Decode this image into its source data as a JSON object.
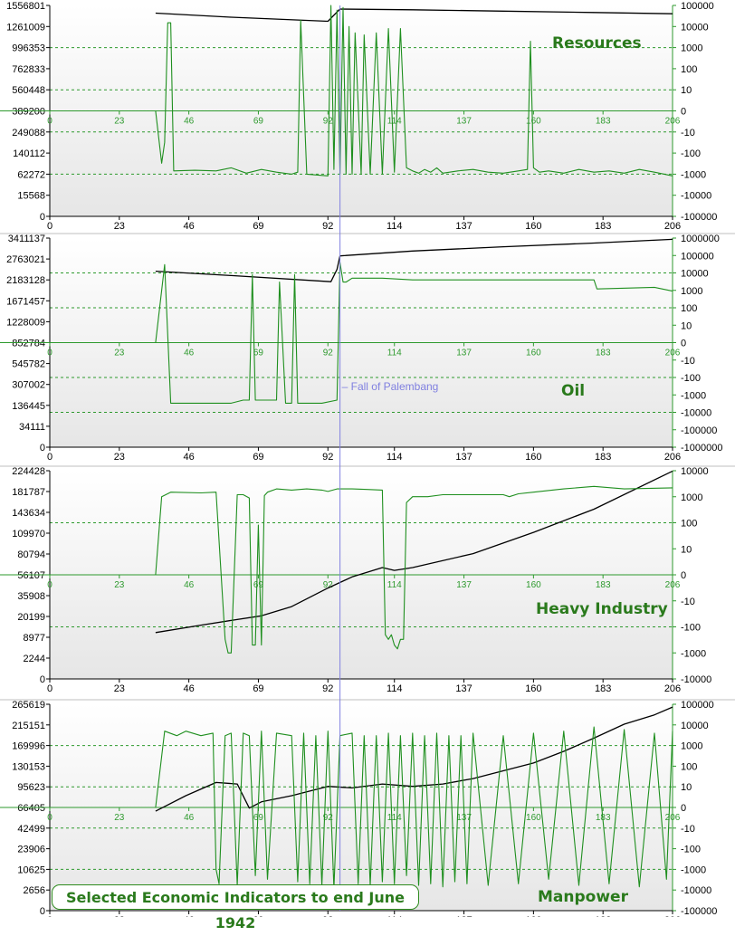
{
  "figure": {
    "caption": "Selected Economic Indicators to end June 1942",
    "event_marker": {
      "x": 96,
      "label": "Fall of Palembang"
    },
    "colors": {
      "index_line": "#000000",
      "change_line": "#1f8f1f",
      "axis_green": "#2e9a2e",
      "marker": "#8080e0",
      "panel_bg_top": "#ffffff",
      "panel_bg_bottom": "#e9e9e9"
    }
  },
  "chart_data": [
    {
      "type": "line",
      "title": "Resources",
      "x_ticks": [
        "0",
        "23",
        "46",
        "69",
        "92",
        "114",
        "137",
        "160",
        "183",
        "206"
      ],
      "xlim": [
        0,
        206
      ],
      "left_ticks": [
        "1556801",
        "1261009",
        "996353",
        "762833",
        "560448",
        "389200",
        "249088",
        "140112",
        "62272",
        "15568",
        "0"
      ],
      "right_ticks": [
        "100000",
        "10000",
        "1000",
        "100",
        "10",
        "0",
        "-10",
        "-100",
        "-1000",
        "-10000",
        "-100000"
      ],
      "series": [
        {
          "axis": "left",
          "x": [
            35,
            60,
            92,
            96,
            120,
            150,
            180,
            206
          ],
          "y": [
            1500000,
            1470000,
            1440000,
            1530000,
            1525000,
            1515000,
            1505000,
            1495000
          ]
        },
        {
          "axis": "right",
          "x": [
            35,
            37,
            38,
            39,
            40,
            41,
            48,
            55,
            60,
            65,
            70,
            75,
            80,
            82,
            83,
            85,
            92,
            93,
            94,
            95,
            96,
            97,
            98,
            99,
            100,
            101,
            103,
            104,
            106,
            108,
            110,
            112,
            114,
            116,
            118,
            120,
            122,
            124,
            126,
            128,
            130,
            135,
            140,
            145,
            150,
            155,
            158,
            159,
            160,
            162,
            165,
            170,
            175,
            180,
            185,
            190,
            195,
            200,
            206
          ],
          "y": [
            0,
            -300,
            -30,
            15000,
            15000,
            -700,
            -650,
            -700,
            -500,
            -900,
            -600,
            -800,
            -1000,
            -800,
            20000,
            -1000,
            -1200,
            100000,
            -600,
            60000,
            -1000,
            80000,
            -1000,
            10000,
            -1000,
            5000,
            -1000,
            4000,
            -1000,
            5000,
            -1000,
            8000,
            -800,
            8000,
            -500,
            -700,
            -900,
            -600,
            -800,
            -500,
            -900,
            -700,
            -600,
            -800,
            -900,
            -700,
            -600,
            2000,
            -500,
            -800,
            -700,
            -900,
            -600,
            -800,
            -700,
            -900,
            -600,
            -800,
            -1200
          ]
        }
      ]
    },
    {
      "type": "line",
      "title": "Oil",
      "x_ticks": [
        "0",
        "23",
        "46",
        "69",
        "92",
        "114",
        "137",
        "160",
        "183",
        "206"
      ],
      "xlim": [
        0,
        206
      ],
      "left_ticks": [
        "3411137",
        "2763021",
        "2183128",
        "1671457",
        "1228009",
        "852784",
        "545782",
        "307002",
        "136445",
        "34111",
        "0"
      ],
      "right_ticks": [
        "1000000",
        "100000",
        "10000",
        "1000",
        "100",
        "10",
        "0",
        "-10",
        "-100",
        "-1000",
        "-10000",
        "-100000",
        "-1000000"
      ],
      "series": [
        {
          "axis": "left",
          "x": [
            35,
            60,
            93,
            95,
            96,
            120,
            150,
            180,
            206
          ],
          "y": [
            2870000,
            2800000,
            2700000,
            2900000,
            3120000,
            3200000,
            3270000,
            3330000,
            3390000
          ]
        },
        {
          "axis": "right",
          "x": [
            35,
            38,
            40,
            43,
            60,
            64,
            66,
            67,
            68,
            75,
            76,
            78,
            80,
            81,
            82,
            90,
            95,
            96,
            97,
            98,
            100,
            110,
            120,
            150,
            180,
            181,
            200,
            206
          ],
          "y": [
            0,
            30000,
            -3000,
            -3000,
            -3000,
            -2000,
            -2000,
            8000,
            -2000,
            -2000,
            3000,
            -3000,
            -3000,
            8000,
            -3000,
            -3000,
            -2000,
            40000,
            3000,
            3000,
            5000,
            5000,
            4000,
            4000,
            4000,
            1200,
            1500,
            900
          ]
        }
      ]
    },
    {
      "type": "line",
      "title": "Heavy Industry",
      "x_ticks": [
        "0",
        "23",
        "46",
        "69",
        "92",
        "114",
        "137",
        "160",
        "183",
        "206"
      ],
      "xlim": [
        0,
        206
      ],
      "left_ticks": [
        "224428",
        "181787",
        "143634",
        "109970",
        "80794",
        "56107",
        "35908",
        "20199",
        "8977",
        "2244",
        "0"
      ],
      "right_ticks": [
        "10000",
        "1000",
        "100",
        "10",
        "0",
        "-10",
        "-100",
        "-1000",
        "-10000"
      ],
      "series": [
        {
          "axis": "left",
          "x": [
            35,
            50,
            60,
            70,
            80,
            92,
            100,
            110,
            114,
            120,
            140,
            160,
            180,
            206
          ],
          "y": [
            50000,
            58000,
            63000,
            68000,
            78000,
            98000,
            110000,
            120000,
            117000,
            120000,
            135000,
            158000,
            183000,
            224000
          ]
        },
        {
          "axis": "right",
          "x": [
            35,
            37,
            40,
            50,
            55,
            58,
            59,
            60,
            62,
            64,
            66,
            67,
            68,
            69,
            70,
            71,
            72,
            75,
            80,
            85,
            90,
            92,
            95,
            100,
            105,
            110,
            111,
            112,
            113,
            114,
            115,
            116,
            117,
            118,
            120,
            125,
            130,
            140,
            150,
            152,
            155,
            160,
            170,
            180,
            190,
            206
          ],
          "y": [
            0,
            1000,
            1500,
            1400,
            1500,
            -300,
            -1000,
            -1000,
            1200,
            1200,
            900,
            -500,
            -500,
            80,
            -500,
            1100,
            1500,
            2000,
            1800,
            2000,
            1800,
            1600,
            2000,
            2000,
            1900,
            1800,
            -200,
            -300,
            -200,
            -500,
            -700,
            -300,
            -300,
            600,
            1000,
            1000,
            1200,
            1200,
            1200,
            1000,
            1300,
            1500,
            2000,
            2500,
            2000,
            2200
          ]
        }
      ]
    },
    {
      "type": "line",
      "title": "Manpower",
      "x_ticks": [
        "0",
        "23",
        "46",
        "69",
        "92",
        "114",
        "137",
        "160",
        "183",
        "206"
      ],
      "xlim": [
        0,
        206
      ],
      "left_ticks": [
        "265619",
        "215151",
        "169996",
        "130153",
        "95623",
        "66405",
        "42499",
        "23906",
        "10625",
        "2656",
        "0"
      ],
      "right_ticks": [
        "100000",
        "10000",
        "1000",
        "100",
        "10",
        "0",
        "-10",
        "-100",
        "-1000",
        "-10000",
        "-100000"
      ],
      "series": [
        {
          "axis": "left",
          "x": [
            35,
            45,
            55,
            62,
            66,
            70,
            80,
            92,
            100,
            110,
            120,
            130,
            140,
            150,
            160,
            170,
            180,
            190,
            200,
            206
          ],
          "y": [
            128000,
            148000,
            165000,
            163000,
            132000,
            140000,
            148000,
            160000,
            158000,
            163000,
            160000,
            163000,
            170000,
            180000,
            190000,
            205000,
            222000,
            240000,
            252000,
            262000
          ]
        },
        {
          "axis": "right",
          "x": [
            35,
            38,
            42,
            45,
            50,
            54,
            55,
            56,
            58,
            60,
            62,
            64,
            66,
            68,
            70,
            72,
            75,
            80,
            82,
            84,
            86,
            88,
            90,
            92,
            94,
            96,
            100,
            102,
            104,
            106,
            108,
            110,
            112,
            114,
            116,
            118,
            120,
            122,
            124,
            126,
            128,
            130,
            132,
            134,
            136,
            138,
            140,
            145,
            150,
            155,
            160,
            165,
            170,
            175,
            180,
            185,
            190,
            195,
            200,
            204,
            206
          ],
          "y": [
            0,
            5000,
            3000,
            5000,
            3000,
            4000,
            -1000,
            -5000,
            3000,
            4000,
            -6000,
            4000,
            3000,
            -2000,
            5000,
            -3000,
            4000,
            3000,
            -4000,
            4000,
            -5000,
            3000,
            -6000,
            5000,
            -8000,
            3000,
            4000,
            -5000,
            3000,
            -6000,
            3000,
            -4000,
            4000,
            -5000,
            3000,
            -2000,
            4000,
            -6000,
            3000,
            -5000,
            4000,
            -7000,
            3000,
            -4000,
            3000,
            -5000,
            4000,
            -6000,
            3000,
            -5000,
            4000,
            -3000,
            5000,
            -6000,
            8000,
            -5000,
            6000,
            -7000,
            4000,
            -3000,
            5000
          ]
        }
      ]
    }
  ]
}
